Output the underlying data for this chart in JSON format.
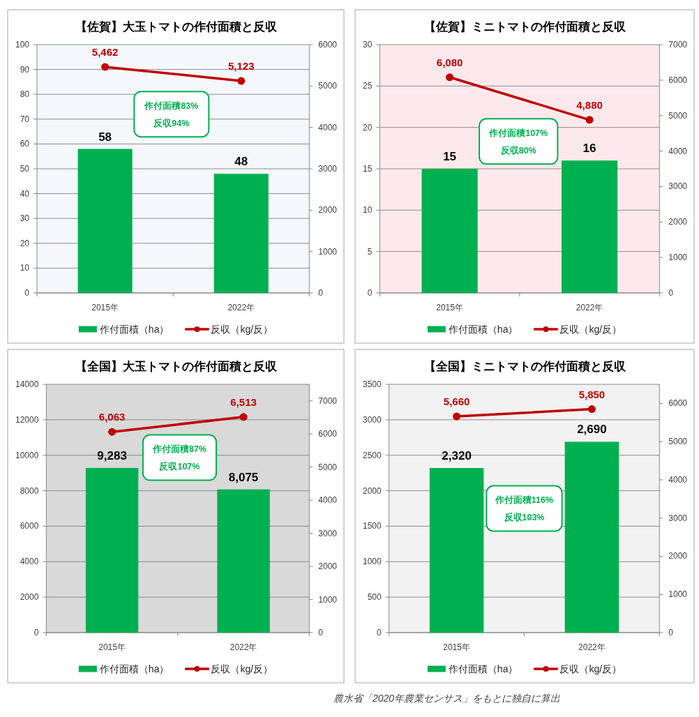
{
  "chart_data": [
    {
      "type": "bar",
      "title": "【佐賀】大玉トマトの作付面積と反収",
      "categories": [
        "2015年",
        "2022年"
      ],
      "series": [
        {
          "name": "作付面積（ha）",
          "color": "#00b050",
          "values": [
            58,
            48
          ],
          "value_labels": [
            "58",
            "48"
          ]
        },
        {
          "name": "反収（kg/反）",
          "type": "line",
          "axis": "y2",
          "color": "#c00000",
          "values": [
            5462,
            5123
          ],
          "value_labels": [
            "5,462",
            "5,123"
          ]
        }
      ],
      "ylim": [
        0,
        100
      ],
      "yticks": [
        0,
        10,
        20,
        30,
        40,
        50,
        60,
        70,
        80,
        90,
        100
      ],
      "y2lim": [
        0,
        6000
      ],
      "y2ticks": [
        0,
        1000,
        2000,
        3000,
        4000,
        5000,
        6000
      ],
      "grid": "y",
      "legend": "bottom",
      "marker": "circle",
      "annotations": [
        "作付面積83%\n反収94%"
      ]
    },
    {
      "type": "bar",
      "title": "【佐賀】ミニトマトの作付面積と反収",
      "categories": [
        "2015年",
        "2022年"
      ],
      "series": [
        {
          "name": "作付面積（ha）",
          "color": "#00b050",
          "values": [
            15,
            16
          ],
          "value_labels": [
            "15",
            "16"
          ]
        },
        {
          "name": "反収（kg/反）",
          "type": "line",
          "axis": "y2",
          "color": "#c00000",
          "values": [
            6080,
            4880
          ],
          "value_labels": [
            "6,080",
            "4,880"
          ]
        }
      ],
      "ylim": [
        0,
        30
      ],
      "yticks": [
        0,
        5,
        10,
        15,
        20,
        25,
        30
      ],
      "y2lim": [
        0,
        7000
      ],
      "y2ticks": [
        0,
        1000,
        2000,
        3000,
        4000,
        5000,
        6000,
        7000
      ],
      "grid": "y",
      "legend": "bottom",
      "marker": "circle",
      "annotations": [
        "作付面積107%\n反収80%"
      ]
    },
    {
      "type": "bar",
      "title": "【全国】大玉トマトの作付面積と反収",
      "categories": [
        "2015年",
        "2022年"
      ],
      "series": [
        {
          "name": "作付面積（ha）",
          "color": "#00b050",
          "values": [
            9283,
            8075
          ],
          "value_labels": [
            "9,283",
            "8,075"
          ]
        },
        {
          "name": "反収（kg/反）",
          "type": "line",
          "axis": "y2",
          "color": "#c00000",
          "values": [
            6063,
            6513
          ],
          "value_labels": [
            "6,063",
            "6,513"
          ]
        }
      ],
      "ylim": [
        0,
        14000
      ],
      "yticks": [
        0,
        2000,
        4000,
        6000,
        8000,
        10000,
        12000,
        14000
      ],
      "y2lim": [
        0,
        7500
      ],
      "y2ticks": [
        0,
        1000,
        2000,
        3000,
        4000,
        5000,
        6000,
        7000
      ],
      "grid": "y",
      "legend": "bottom",
      "marker": "circle",
      "annotations": [
        "作付面積87%\n反収107%"
      ]
    },
    {
      "type": "bar",
      "title": "【全国】ミニトマトの作付面積と反収",
      "categories": [
        "2015年",
        "2022年"
      ],
      "series": [
        {
          "name": "作付面積（ha）",
          "color": "#00b050",
          "values": [
            2320,
            2690
          ],
          "value_labels": [
            "2,320",
            "2,690"
          ]
        },
        {
          "name": "反収（kg/反）",
          "type": "line",
          "axis": "y2",
          "color": "#c00000",
          "values": [
            5660,
            5850
          ],
          "value_labels": [
            "5,660",
            "5,850"
          ]
        }
      ],
      "ylim": [
        0,
        3500
      ],
      "yticks": [
        0,
        500,
        1000,
        1500,
        2000,
        2500,
        3000,
        3500
      ],
      "y2lim": [
        0,
        6500
      ],
      "y2ticks": [
        0,
        1000,
        2000,
        3000,
        4000,
        5000,
        6000
      ],
      "grid": "y",
      "legend": "bottom",
      "marker": "circle",
      "annotations": [
        "作付面積116%\n反収103%",
        "農水省「2020年農業センサス」をもとに独自に算出"
      ]
    }
  ]
}
